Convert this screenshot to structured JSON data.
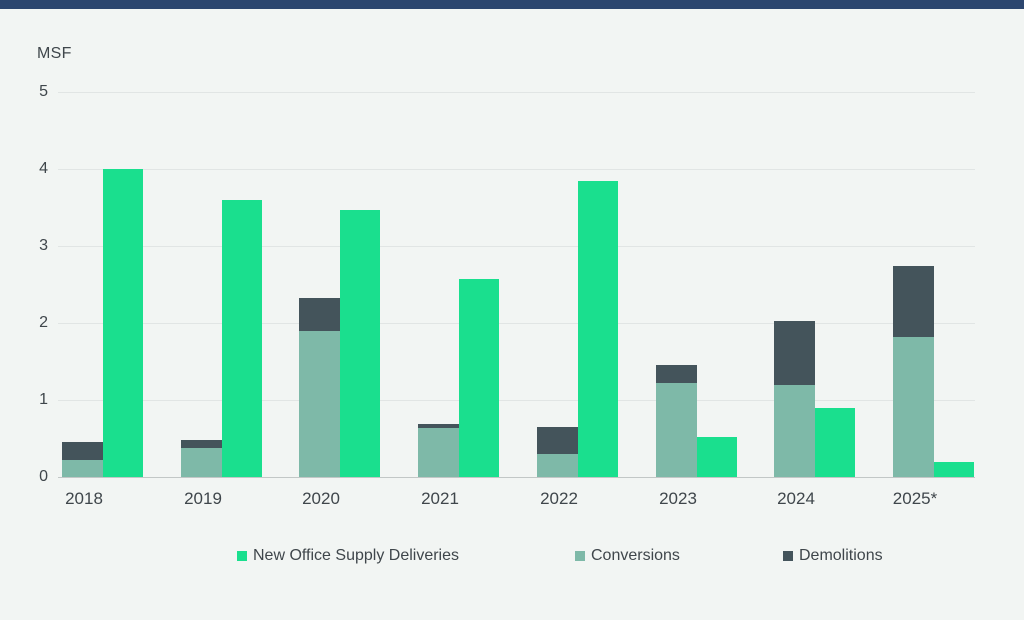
{
  "chart": {
    "unit_label": "MSF",
    "colors": {
      "deliveries": "#1adf8e",
      "conversions": "#7eb9a8",
      "demolitions": "#44545b",
      "top_bar": "#2c466f",
      "background": "#f2f5f3",
      "gridline": "#e1e5e4",
      "axis_line": "#c2c7c6",
      "text": "#3f464b"
    },
    "legend": [
      {
        "label": "New Office Supply Deliveries",
        "color_key": "deliveries"
      },
      {
        "label": "Conversions",
        "color_key": "conversions"
      },
      {
        "label": "Demolitions",
        "color_key": "demolitions"
      }
    ]
  },
  "chart_data": {
    "type": "bar",
    "title": "",
    "ylabel": "MSF",
    "ylim": [
      0,
      5
    ],
    "yticks": [
      0,
      1,
      2,
      3,
      4,
      5
    ],
    "grid": true,
    "legend_position": "bottom",
    "categories": [
      "2018",
      "2019",
      "2020",
      "2021",
      "2022",
      "2023",
      "2024",
      "2025*"
    ],
    "series": [
      {
        "name": "New Office Supply Deliveries",
        "grouping": "separate-bar",
        "values": [
          4.0,
          3.6,
          3.47,
          2.57,
          3.84,
          0.52,
          0.9,
          0.2
        ]
      },
      {
        "name": "Conversions",
        "grouping": "stacked-bar-bottom",
        "values": [
          0.22,
          0.38,
          1.9,
          0.64,
          0.3,
          1.22,
          1.19,
          1.82
        ]
      },
      {
        "name": "Demolitions",
        "grouping": "stacked-bar-top",
        "values": [
          0.23,
          0.1,
          0.43,
          0.05,
          0.35,
          0.24,
          0.83,
          0.92
        ]
      }
    ]
  }
}
